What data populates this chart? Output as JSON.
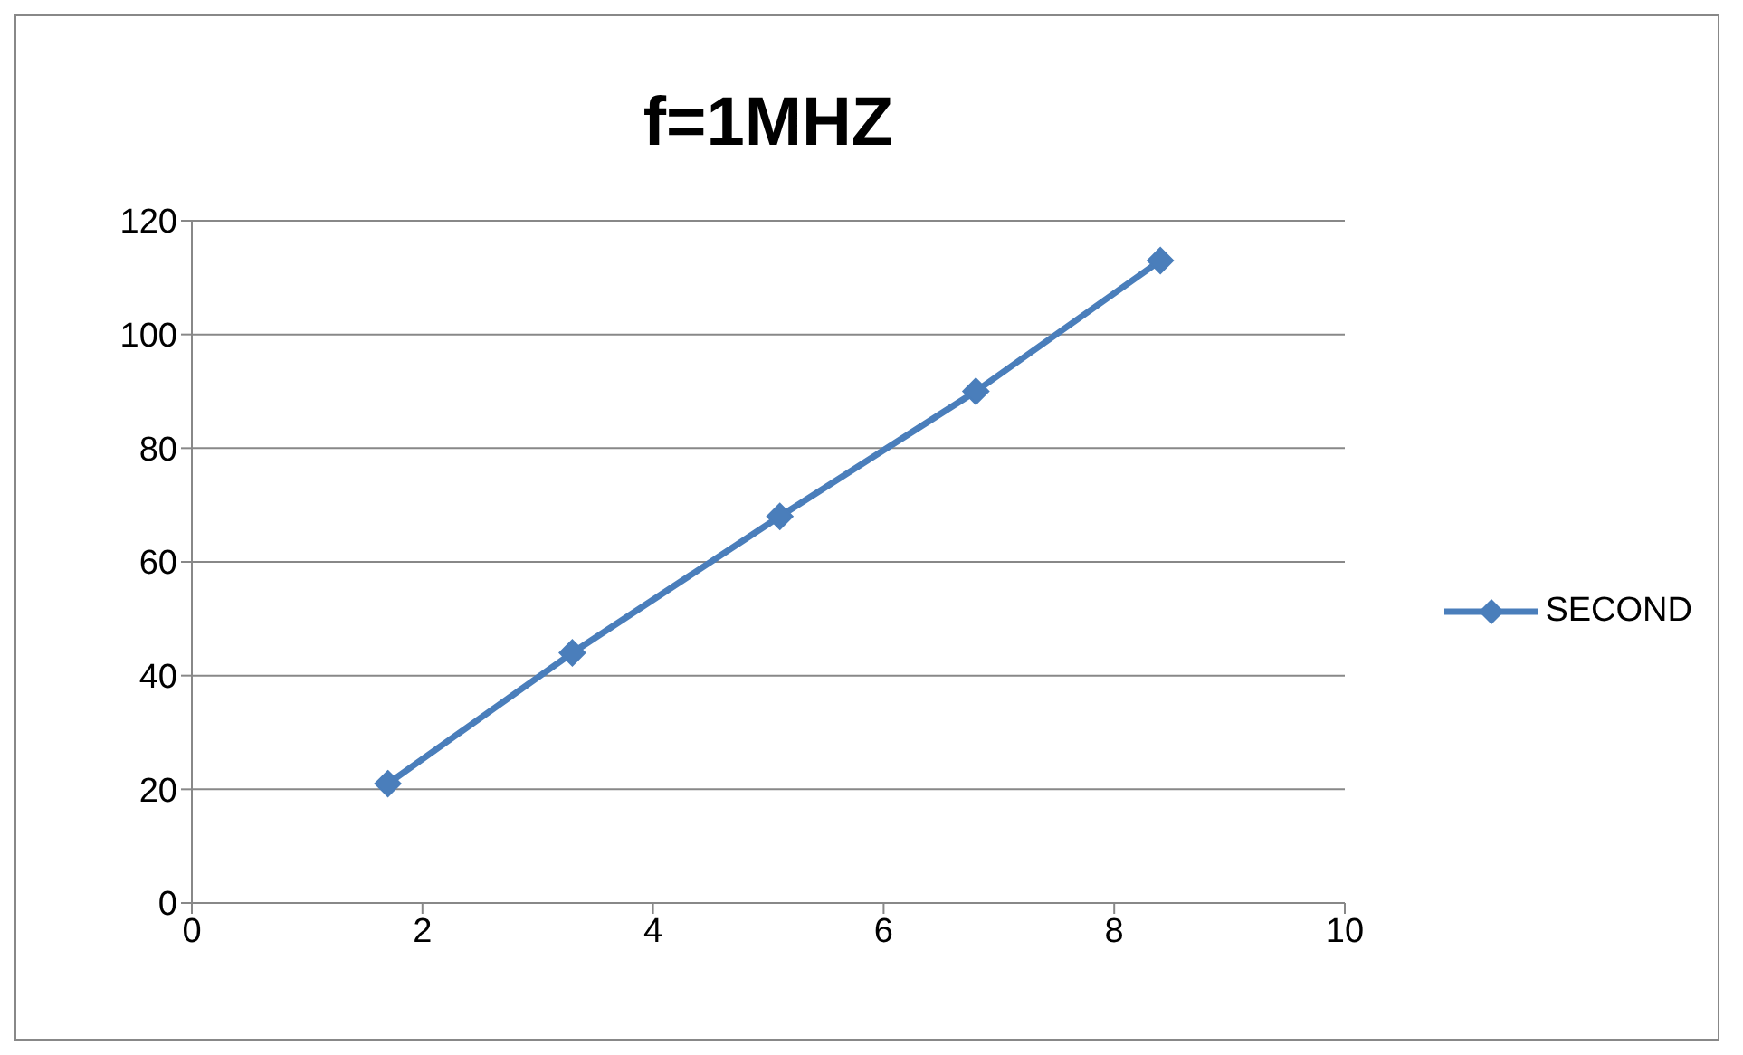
{
  "chart_data": {
    "type": "line",
    "title": "f=1MHZ",
    "x": [
      1.7,
      3.3,
      5.1,
      6.8,
      8.4
    ],
    "series": [
      {
        "name": "SECOND",
        "color": "#4a7ebb",
        "values": [
          21,
          44,
          68,
          90,
          113
        ]
      }
    ],
    "xlim": [
      0,
      10
    ],
    "xticks": [
      0,
      2,
      4,
      6,
      8,
      10
    ],
    "ylim": [
      0,
      120
    ],
    "yticks": [
      0,
      20,
      40,
      60,
      80,
      100,
      120
    ],
    "grid": "y",
    "legend": "right",
    "marker": "diamond",
    "line_style": "solid"
  }
}
